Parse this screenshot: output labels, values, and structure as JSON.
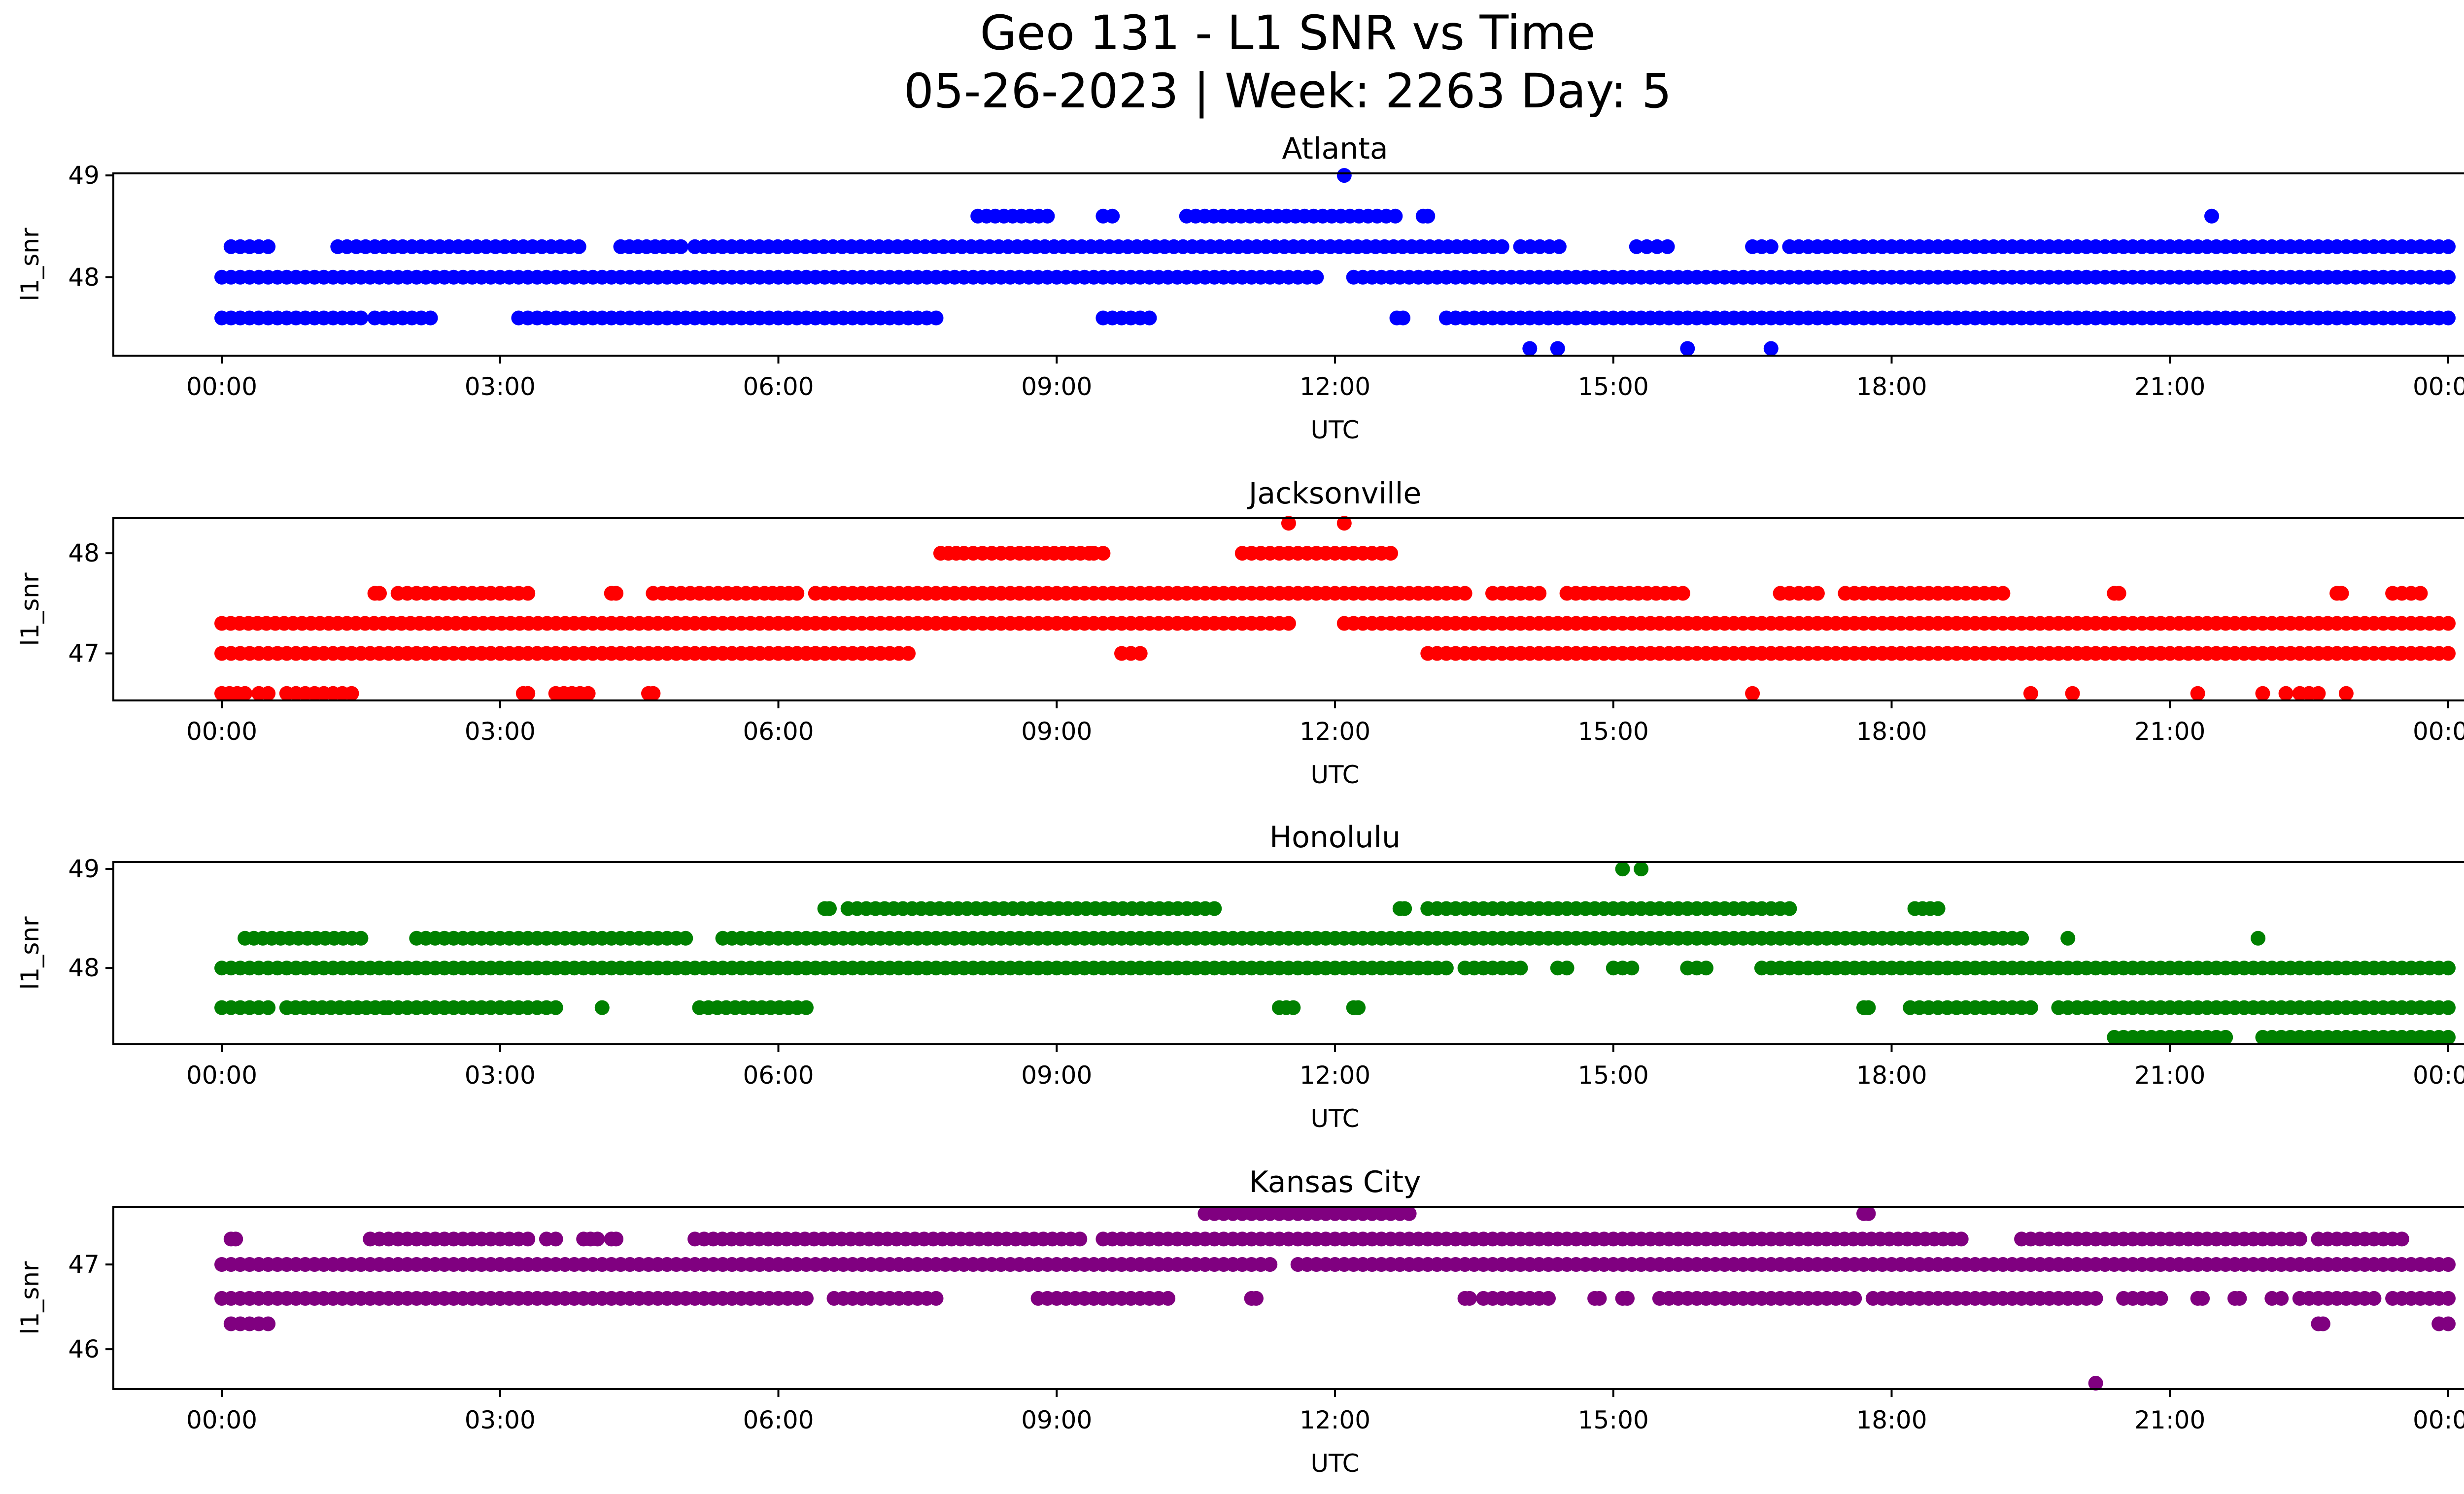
{
  "figure": {
    "title_line1": "Geo 131 - L1 SNR vs Time",
    "title_line2": "05-26-2023 | Week: 2263 Day: 5"
  },
  "chart_data": [
    {
      "type": "scatter",
      "title": "Atlanta",
      "xlabel": "UTC",
      "ylabel": "l1_snr",
      "color": "#0000ff",
      "xlim": [
        "2023-05-26T00:00",
        "2023-05-27T00:00"
      ],
      "ylim": [
        47.23,
        49.02
      ],
      "y_ticks": [
        48,
        49
      ],
      "x_ticks": [
        "00:00",
        "03:00",
        "06:00",
        "09:00",
        "12:00",
        "15:00",
        "18:00",
        "21:00",
        "00:00"
      ],
      "levels": [
        {
          "y": 48.0,
          "segments": [
            [
              "00:00",
              "11:48"
            ],
            [
              "12:12",
              "24:00"
            ]
          ]
        },
        {
          "y": 48.3,
          "segments": [
            [
              "00:06",
              "00:30"
            ],
            [
              "01:15",
              "01:45"
            ],
            [
              "01:45",
              "03:51"
            ],
            [
              "04:18",
              "04:57"
            ],
            [
              "05:06",
              "11:57"
            ],
            [
              "11:57",
              "13:48"
            ],
            [
              "14:00",
              "14:25"
            ],
            [
              "15:15",
              "15:35"
            ],
            [
              "16:30",
              "16:42"
            ],
            [
              "16:54",
              "24:00"
            ]
          ]
        },
        {
          "y": 47.6,
          "segments": [
            [
              "00:00",
              "01:30"
            ],
            [
              "01:39",
              "02:15"
            ],
            [
              "03:12",
              "07:42"
            ],
            [
              "09:30",
              "10:00"
            ],
            [
              "12:40",
              "12:44"
            ],
            [
              "13:12",
              "24:00"
            ]
          ]
        },
        {
          "y": 48.6,
          "segments": [
            [
              "08:09",
              "08:54"
            ],
            [
              "09:30",
              "09:36"
            ],
            [
              "10:24",
              "12:39"
            ],
            [
              "12:57",
              "13:00"
            ]
          ]
        }
      ],
      "points": [
        {
          "x": "12:06",
          "y": 49.0
        },
        {
          "x": "21:27",
          "y": 48.6
        },
        {
          "x": "14:06",
          "y": 47.3
        },
        {
          "x": "14:24",
          "y": 47.3
        },
        {
          "x": "15:48",
          "y": 47.3
        },
        {
          "x": "16:42",
          "y": 47.3
        }
      ]
    },
    {
      "type": "scatter",
      "title": "Jacksonville",
      "xlabel": "UTC",
      "ylabel": "l1_snr",
      "color": "#ff0000",
      "xlim": [
        "2023-05-26T00:00",
        "2023-05-27T00:00"
      ],
      "ylim": [
        46.53,
        48.35
      ],
      "y_ticks": [
        47,
        48
      ],
      "x_ticks": [
        "00:00",
        "03:00",
        "06:00",
        "09:00",
        "12:00",
        "15:00",
        "18:00",
        "21:00",
        "00:00"
      ],
      "levels": [
        {
          "y": 47.0,
          "segments": [
            [
              "00:00",
              "06:30"
            ],
            [
              "06:06",
              "07:24"
            ],
            [
              "09:42",
              "09:54"
            ],
            [
              "13:00",
              "24:00"
            ]
          ]
        },
        {
          "y": 47.3,
          "segments": [
            [
              "00:00",
              "01:15"
            ],
            [
              "01:15",
              "03:48"
            ],
            [
              "03:54",
              "11:12"
            ],
            [
              "11:12",
              "11:30"
            ],
            [
              "12:06",
              "24:00"
            ]
          ]
        },
        {
          "y": 47.6,
          "segments": [
            [
              "01:39",
              "01:42"
            ],
            [
              "01:54",
              "02:30"
            ],
            [
              "02:36",
              "03:18"
            ],
            [
              "04:12",
              "04:15"
            ],
            [
              "04:39",
              "05:45"
            ],
            [
              "05:51",
              "06:12"
            ],
            [
              "06:24",
              "13:24"
            ],
            [
              "13:42",
              "14:12"
            ],
            [
              "14:30",
              "15:45"
            ],
            [
              "16:48",
              "17:12"
            ],
            [
              "17:30",
              "19:12"
            ],
            [
              "20:24",
              "20:27"
            ],
            [
              "22:48",
              "22:51"
            ],
            [
              "23:24",
              "23:42"
            ]
          ]
        },
        {
          "y": 48.0,
          "segments": [
            [
              "07:45",
              "08:00"
            ],
            [
              "08:06",
              "08:30"
            ],
            [
              "08:36",
              "09:21"
            ],
            [
              "09:24",
              "09:30"
            ],
            [
              "11:00",
              "12:36"
            ]
          ]
        },
        {
          "y": 46.6,
          "segments": [
            [
              "00:00",
              "00:15"
            ],
            [
              "00:24",
              "00:30"
            ],
            [
              "00:42",
              "01:24"
            ],
            [
              "03:15",
              "03:18"
            ],
            [
              "03:36",
              "03:57"
            ],
            [
              "04:36",
              "04:39"
            ]
          ]
        }
      ],
      "points": [
        {
          "x": "11:30",
          "y": 48.3
        },
        {
          "x": "12:06",
          "y": 48.3
        },
        {
          "x": "16:30",
          "y": 46.6
        },
        {
          "x": "19:30",
          "y": 46.6
        },
        {
          "x": "19:57",
          "y": 46.6
        },
        {
          "x": "21:18",
          "y": 46.6
        },
        {
          "x": "22:00",
          "y": 46.6
        },
        {
          "x": "22:15",
          "y": 46.6
        },
        {
          "x": "22:24",
          "y": 46.6
        },
        {
          "x": "22:30",
          "y": 46.6
        },
        {
          "x": "22:36",
          "y": 46.6
        },
        {
          "x": "22:54",
          "y": 46.6
        }
      ]
    },
    {
      "type": "scatter",
      "title": "Honolulu",
      "xlabel": "UTC",
      "ylabel": "l1_snr",
      "color": "#008000",
      "xlim": [
        "2023-05-26T00:00",
        "2023-05-27T00:00"
      ],
      "ylim": [
        47.23,
        49.07
      ],
      "y_ticks": [
        48,
        49
      ],
      "x_ticks": [
        "00:00",
        "03:00",
        "06:00",
        "09:00",
        "12:00",
        "15:00",
        "18:00",
        "21:00",
        "00:00"
      ],
      "levels": [
        {
          "y": 48.0,
          "segments": [
            [
              "00:00",
              "13:12"
            ],
            [
              "13:24",
              "14:00"
            ],
            [
              "14:24",
              "14:30"
            ],
            [
              "15:00",
              "15:12"
            ],
            [
              "15:48",
              "16:00"
            ],
            [
              "16:36",
              "22:30"
            ],
            [
              "22:36",
              "24:00"
            ]
          ]
        },
        {
          "y": 48.3,
          "segments": [
            [
              "00:15",
              "01:30"
            ],
            [
              "02:06",
              "05:00"
            ],
            [
              "05:24",
              "19:24"
            ]
          ]
        },
        {
          "y": 47.6,
          "segments": [
            [
              "00:00",
              "00:30"
            ],
            [
              "00:42",
              "01:45"
            ],
            [
              "01:48",
              "03:36"
            ],
            [
              "05:09",
              "06:18"
            ],
            [
              "11:24",
              "11:33"
            ],
            [
              "12:12",
              "12:15"
            ],
            [
              "17:42",
              "17:45"
            ],
            [
              "18:12",
              "19:30"
            ],
            [
              "19:48",
              "24:00"
            ]
          ]
        },
        {
          "y": 48.6,
          "segments": [
            [
              "06:30",
              "06:33"
            ],
            [
              "06:45",
              "10:42"
            ],
            [
              "12:42",
              "12:45"
            ],
            [
              "13:00",
              "16:54"
            ],
            [
              "18:15",
              "18:30"
            ]
          ]
        },
        {
          "y": 47.3,
          "segments": [
            [
              "20:24",
              "21:36"
            ],
            [
              "22:00",
              "24:00"
            ]
          ]
        }
      ],
      "points": [
        {
          "x": "15:06",
          "y": 49.0
        },
        {
          "x": "15:18",
          "y": 49.0
        },
        {
          "x": "19:54",
          "y": 48.3
        },
        {
          "x": "21:57",
          "y": 48.3
        },
        {
          "x": "04:06",
          "y": 47.6
        }
      ]
    },
    {
      "type": "scatter",
      "title": "Kansas City",
      "xlabel": "UTC",
      "ylabel": "l1_snr",
      "color": "#800080",
      "xlim": [
        "2023-05-26T00:00",
        "2023-05-27T00:00"
      ],
      "ylim": [
        45.53,
        47.68
      ],
      "y_ticks": [
        46,
        47
      ],
      "x_ticks": [
        "00:00",
        "03:00",
        "06:00",
        "09:00",
        "12:00",
        "15:00",
        "18:00",
        "21:00",
        "00:00"
      ],
      "levels": [
        {
          "y": 47.0,
          "segments": [
            [
              "00:00",
              "11:18"
            ],
            [
              "11:36",
              "11:48"
            ],
            [
              "11:54",
              "24:00"
            ]
          ]
        },
        {
          "y": 47.3,
          "segments": [
            [
              "00:06",
              "00:09"
            ],
            [
              "01:36",
              "01:48"
            ],
            [
              "01:54",
              "03:18"
            ],
            [
              "03:30",
              "03:36"
            ],
            [
              "03:54",
              "04:03"
            ],
            [
              "04:12",
              "04:15"
            ],
            [
              "05:06",
              "09:15"
            ],
            [
              "09:30",
              "17:06"
            ],
            [
              "17:12",
              "18:45"
            ],
            [
              "19:24",
              "22:24"
            ],
            [
              "22:36",
              "23:12"
            ],
            [
              "23:18",
              "23:30"
            ]
          ]
        },
        {
          "y": 47.6,
          "segments": [
            [
              "10:36",
              "12:48"
            ],
            [
              "17:42",
              "17:45"
            ]
          ]
        },
        {
          "y": 46.6,
          "segments": [
            [
              "00:00",
              "03:00"
            ],
            [
              "03:00",
              "05:42"
            ],
            [
              "05:48",
              "06:18"
            ],
            [
              "06:36",
              "07:42"
            ],
            [
              "08:48",
              "09:00"
            ],
            [
              "09:06",
              "10:12"
            ],
            [
              "11:06",
              "11:09"
            ],
            [
              "13:24",
              "13:27"
            ],
            [
              "13:36",
              "14:18"
            ],
            [
              "14:48",
              "14:51"
            ],
            [
              "15:06",
              "15:09"
            ],
            [
              "15:30",
              "17:36"
            ],
            [
              "17:48",
              "17:54"
            ],
            [
              "18:00",
              "20:12"
            ],
            [
              "20:30",
              "20:54"
            ],
            [
              "21:18",
              "21:21"
            ],
            [
              "21:42",
              "21:45"
            ],
            [
              "22:06",
              "22:12"
            ],
            [
              "22:24",
              "23:12"
            ],
            [
              "23:24",
              "24:00"
            ]
          ]
        },
        {
          "y": 46.3,
          "segments": [
            [
              "00:06",
              "00:30"
            ],
            [
              "22:36",
              "22:39"
            ],
            [
              "23:54",
              "24:00"
            ]
          ]
        }
      ],
      "points": [
        {
          "x": "20:12",
          "y": 45.6
        }
      ]
    }
  ]
}
